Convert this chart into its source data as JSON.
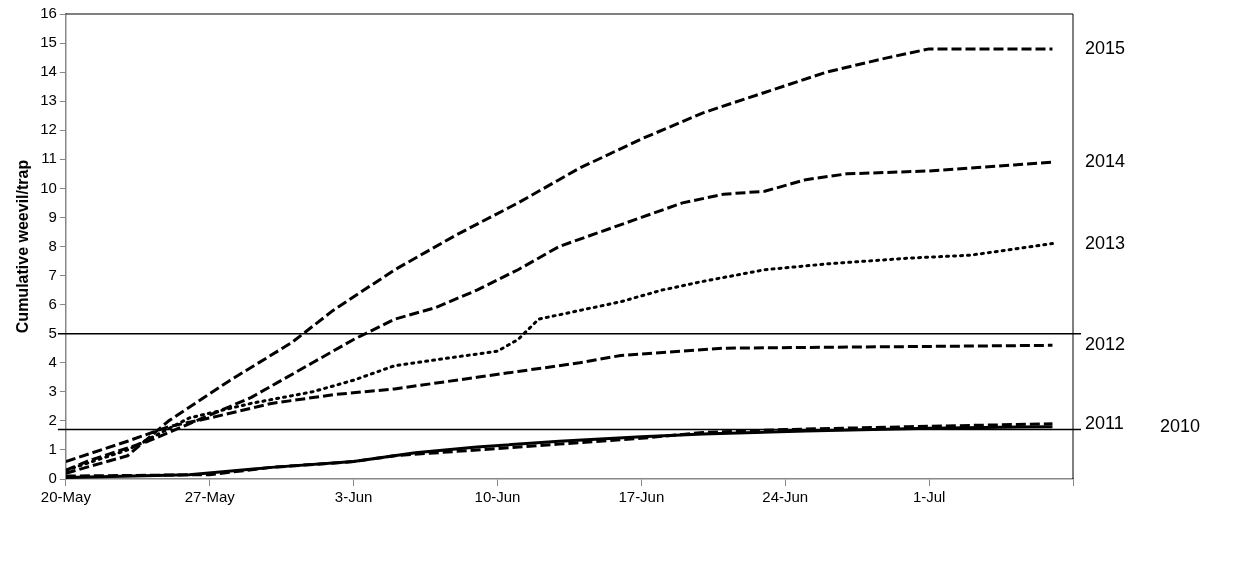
{
  "chart_data": {
    "type": "line",
    "ylabel": "Cumulative weevil/trap",
    "xlim": [
      "--05-20",
      "--07-08"
    ],
    "xticks": [
      {
        "value": "--05-20",
        "label": "20-May"
      },
      {
        "value": "--05-27",
        "label": "27-May"
      },
      {
        "value": "--06-03",
        "label": "3-Jun"
      },
      {
        "value": "--06-10",
        "label": "10-Jun"
      },
      {
        "value": "--06-17",
        "label": "17-Jun"
      },
      {
        "value": "--06-24",
        "label": "24-Jun"
      },
      {
        "value": "--07-01",
        "label": "1-Jul"
      },
      {
        "value": "--07-08",
        "label": null
      }
    ],
    "ylim": [
      0,
      16
    ],
    "yticks": [
      0,
      1,
      2,
      3,
      4,
      5,
      6,
      7,
      8,
      9,
      10,
      11,
      12,
      13,
      14,
      15,
      16
    ],
    "grid": false,
    "legend": false,
    "marker": "none",
    "ref_lines": [
      {
        "axis": "y",
        "value": 5,
        "color": "#000000"
      },
      {
        "axis": "y",
        "value": 1.7,
        "color": "#000000"
      }
    ],
    "series": [
      {
        "name": "2015",
        "color": "#000000",
        "line_style": "dashed",
        "x": [
          "--05-20",
          "--05-23",
          "--05-25",
          "--05-28",
          "--05-31",
          "--06-02",
          "--06-05",
          "--06-08",
          "--06-11",
          "--06-14",
          "--06-17",
          "--06-20",
          "--06-23",
          "--06-26",
          "--06-29",
          "--07-01",
          "--07-07"
        ],
        "values": [
          0.2,
          0.8,
          2.0,
          3.4,
          4.7,
          5.8,
          7.2,
          8.4,
          9.5,
          10.7,
          11.7,
          12.6,
          13.3,
          14.0,
          14.5,
          14.8,
          14.8
        ]
      },
      {
        "name": "2014",
        "color": "#000000",
        "line_style": "dashed",
        "x": [
          "--05-20",
          "--05-21",
          "--05-24",
          "--05-26",
          "--05-29",
          "--06-01",
          "--06-03",
          "--06-05",
          "--06-07",
          "--06-09",
          "--06-11",
          "--06-13",
          "--06-15",
          "--06-17",
          "--06-19",
          "--06-21",
          "--06-23",
          "--06-25",
          "--06-27",
          "--07-01",
          "--07-07"
        ],
        "values": [
          0.3,
          0.6,
          1.3,
          1.9,
          2.8,
          4.0,
          4.8,
          5.5,
          5.9,
          6.5,
          7.2,
          8.0,
          8.5,
          9.0,
          9.5,
          9.8,
          9.9,
          10.3,
          10.5,
          10.6,
          10.9
        ]
      },
      {
        "name": "2013",
        "color": "#000000",
        "line_style": "dotted",
        "x": [
          "--05-20",
          "--05-23",
          "--05-26",
          "--05-29",
          "--06-01",
          "--06-03",
          "--06-05",
          "--06-07",
          "--06-10",
          "--06-11",
          "--06-12",
          "--06-14",
          "--06-16",
          "--06-18",
          "--06-20",
          "--06-23",
          "--06-26",
          "--06-30",
          "--07-03",
          "--07-07"
        ],
        "values": [
          0.3,
          1.0,
          2.1,
          2.6,
          3.0,
          3.4,
          3.9,
          4.1,
          4.4,
          4.8,
          5.5,
          5.8,
          6.1,
          6.5,
          6.8,
          7.2,
          7.4,
          7.6,
          7.7,
          8.1
        ]
      },
      {
        "name": "2012",
        "color": "#000000",
        "line_style": "dashed",
        "x": [
          "--05-20",
          "--05-23",
          "--05-25",
          "--05-27",
          "--05-30",
          "--06-02",
          "--06-05",
          "--06-09",
          "--06-11",
          "--06-14",
          "--06-16",
          "--06-19",
          "--06-21",
          "--07-07"
        ],
        "values": [
          0.6,
          1.3,
          1.8,
          2.1,
          2.6,
          2.9,
          3.1,
          3.5,
          3.7,
          4.0,
          4.25,
          4.4,
          4.5,
          4.6
        ]
      },
      {
        "name": "2011",
        "color": "#000000",
        "line_style": "dashed",
        "x": [
          "--05-20",
          "--05-27",
          "--05-30",
          "--06-03",
          "--06-05",
          "--06-09",
          "--06-13",
          "--06-17",
          "--06-20",
          "--06-24",
          "--06-30",
          "--07-07"
        ],
        "values": [
          0.1,
          0.15,
          0.4,
          0.6,
          0.8,
          1.0,
          1.2,
          1.4,
          1.6,
          1.7,
          1.8,
          1.9
        ]
      },
      {
        "name": "2010",
        "color": "#000000",
        "line_style": "solid",
        "x": [
          "--05-20",
          "--05-26",
          "--05-30",
          "--06-03",
          "--06-06",
          "--06-09",
          "--06-13",
          "--06-17",
          "--06-20",
          "--06-25",
          "--07-01",
          "--07-07"
        ],
        "values": [
          0.05,
          0.15,
          0.4,
          0.6,
          0.9,
          1.1,
          1.3,
          1.45,
          1.55,
          1.65,
          1.75,
          1.8
        ]
      }
    ]
  }
}
